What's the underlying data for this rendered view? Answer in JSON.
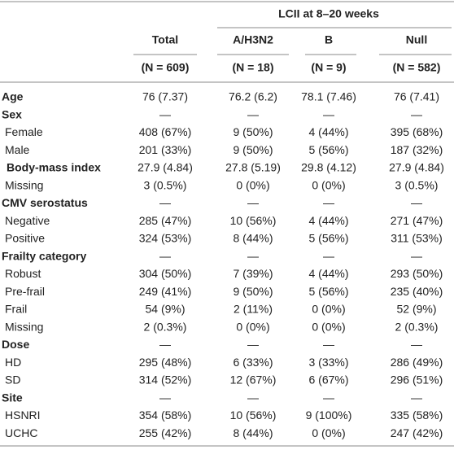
{
  "table": {
    "group_header": "LCII at 8–20 weeks",
    "columns": [
      "Total",
      "A/H3N2",
      "B",
      "Null"
    ],
    "counts": [
      "(N = 609)",
      "(N = 18)",
      "(N = 9)",
      "(N = 582)"
    ],
    "rows": [
      {
        "label": "Age",
        "bold": true,
        "cells": [
          "76 (7.37)",
          "76.2 (6.2)",
          "78.1 (7.46)",
          "76 (7.41)"
        ]
      },
      {
        "label": "Sex",
        "bold": true,
        "cells": [
          "—",
          "—",
          "—",
          "—"
        ]
      },
      {
        "label": "Female",
        "bold": false,
        "cells": [
          "408 (67%)",
          "9 (50%)",
          "4 (44%)",
          "395 (68%)"
        ]
      },
      {
        "label": "Male",
        "bold": false,
        "cells": [
          "201 (33%)",
          "9 (50%)",
          "5 (56%)",
          "187 (32%)"
        ]
      },
      {
        "label": "Body-mass index",
        "bold": true,
        "cells": [
          "27.9 (4.84)",
          "27.8 (5.19)",
          "29.8 (4.12)",
          "27.9 (4.84)"
        ]
      },
      {
        "label": "Missing",
        "bold": false,
        "cells": [
          "3 (0.5%)",
          "0 (0%)",
          "0 (0%)",
          "3 (0.5%)"
        ]
      },
      {
        "label": "CMV serostatus",
        "bold": true,
        "cells": [
          "—",
          "—",
          "—",
          "—"
        ]
      },
      {
        "label": "Negative",
        "bold": false,
        "cells": [
          "285 (47%)",
          "10 (56%)",
          "4 (44%)",
          "271 (47%)"
        ]
      },
      {
        "label": "Positive",
        "bold": false,
        "cells": [
          "324 (53%)",
          "8 (44%)",
          "5 (56%)",
          "311 (53%)"
        ]
      },
      {
        "label": "Frailty category",
        "bold": true,
        "cells": [
          "—",
          "—",
          "—",
          "—"
        ]
      },
      {
        "label": "Robust",
        "bold": false,
        "cells": [
          "304 (50%)",
          "7 (39%)",
          "4 (44%)",
          "293 (50%)"
        ]
      },
      {
        "label": "Pre-frail",
        "bold": false,
        "cells": [
          "249 (41%)",
          "9 (50%)",
          "5 (56%)",
          "235 (40%)"
        ]
      },
      {
        "label": "Frail",
        "bold": false,
        "cells": [
          "54 (9%)",
          "2 (11%)",
          "0 (0%)",
          "52 (9%)"
        ]
      },
      {
        "label": "Missing",
        "bold": false,
        "cells": [
          "2 (0.3%)",
          "0 (0%)",
          "0 (0%)",
          "2 (0.3%)"
        ]
      },
      {
        "label": "Dose",
        "bold": true,
        "cells": [
          "—",
          "—",
          "—",
          "—"
        ]
      },
      {
        "label": "HD",
        "bold": false,
        "cells": [
          "295 (48%)",
          "6 (33%)",
          "3 (33%)",
          "286 (49%)"
        ]
      },
      {
        "label": "SD",
        "bold": false,
        "cells": [
          "314 (52%)",
          "12 (67%)",
          "6 (67%)",
          "296 (51%)"
        ]
      },
      {
        "label": "Site",
        "bold": true,
        "cells": [
          "—",
          "—",
          "—",
          "—"
        ]
      },
      {
        "label": "HSNRI",
        "bold": false,
        "cells": [
          "354 (58%)",
          "10 (56%)",
          "9 (100%)",
          "335 (58%)"
        ]
      },
      {
        "label": "UCHC",
        "bold": false,
        "cells": [
          "255 (42%)",
          "8 (44%)",
          "0 (0%)",
          "247 (42%)"
        ]
      }
    ]
  }
}
